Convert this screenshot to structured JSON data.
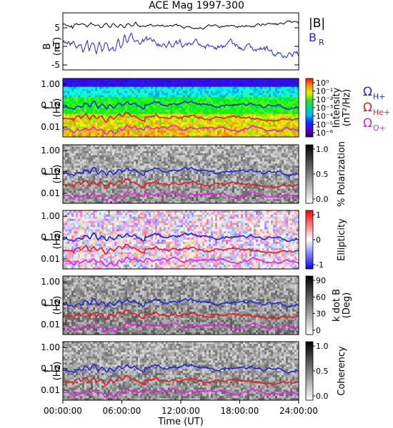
{
  "title": "ACE Mag 1997-300",
  "x_axis": {
    "label": "Time (UT)",
    "ticks": [
      "00:00:00",
      "06:00:00",
      "12:00:00",
      "18:00:00",
      "24:00:00"
    ]
  },
  "panel_b": {
    "ylabel_line1": "B",
    "ylabel_line2": "(nT)",
    "yticks": [
      "5",
      "0",
      "-5"
    ],
    "legend_total": "|B|",
    "legend_radial": "B",
    "legend_radial_sub": "R",
    "colors": {
      "total": "#000000",
      "radial": "#1f24d6"
    }
  },
  "spectra_panels": [
    {
      "id": "intensity",
      "ylabel_line1": "f",
      "ylabel_line2": "(Hz)",
      "yticks": [
        "1.00",
        "0.10",
        "0.01"
      ],
      "colorbar": "rainbow",
      "colorbar_label": "Intensity",
      "colorbar_unit": "(nT²/Hz)",
      "colorbar_ticks": [
        "10⁰",
        "10⁻¹",
        "10⁻²",
        "10⁻³",
        "10⁻⁴",
        "10⁻⁵",
        "10⁻⁶"
      ],
      "gyro_labels": [
        {
          "main": "Ω",
          "sub": "H+",
          "color": "#1f24d6"
        },
        {
          "main": "Ω",
          "sub": "He+",
          "color": "#e01e1e"
        },
        {
          "main": "Ω",
          "sub": "O+",
          "color": "#e61ee6"
        }
      ]
    },
    {
      "id": "polarization",
      "ylabel_line1": "f",
      "ylabel_line2": "(Hz)",
      "yticks": [
        "1.00",
        "0.10",
        "0.01"
      ],
      "colorbar": "gray",
      "colorbar_label": "% Polarization",
      "colorbar_unit": "",
      "colorbar_ticks": [
        "1.0",
        "0.5",
        "0.0"
      ]
    },
    {
      "id": "ellipticity",
      "ylabel_line1": "f",
      "ylabel_line2": "(Hz)",
      "yticks": [
        "1.00",
        "0.10",
        "0.01"
      ],
      "colorbar": "bwr",
      "colorbar_label": "Ellipticity",
      "colorbar_unit": "",
      "colorbar_ticks": [
        "1",
        "0",
        "-1"
      ]
    },
    {
      "id": "kdotb",
      "ylabel_line1": "f",
      "ylabel_line2": "(Hz)",
      "yticks": [
        "1.00",
        "0.10",
        "0.01"
      ],
      "colorbar": "gray",
      "colorbar_label": "k dot B",
      "colorbar_unit": "(Deg)",
      "colorbar_ticks": [
        "90",
        "60",
        "30",
        "0"
      ]
    },
    {
      "id": "coherency",
      "ylabel_line1": "f",
      "ylabel_line2": "(Hz)",
      "yticks": [
        "1.00",
        "0.10",
        "0.01"
      ],
      "colorbar": "gray",
      "colorbar_label": "Coherency",
      "colorbar_unit": "",
      "colorbar_ticks": [
        "1.0",
        "0.5",
        "0.0"
      ]
    }
  ],
  "gyro_colors": {
    "h": "#1f24d6",
    "he": "#e01e1e",
    "o": "#e61ee6"
  }
}
